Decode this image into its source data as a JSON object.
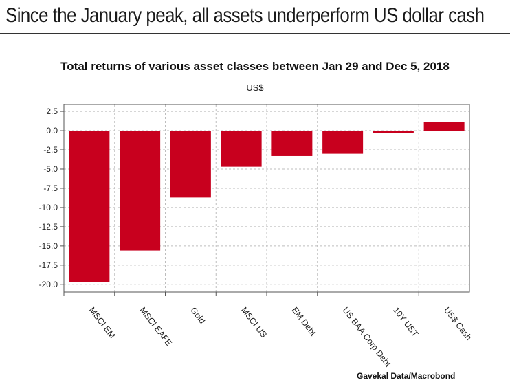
{
  "headline": "Since the January peak, all assets underperform US dollar cash",
  "source": "Gavekal Data/Macrobond",
  "colors": {
    "bar": "#c8001e",
    "grid": "#bdbdbd",
    "axis": "#555555"
  },
  "chart_data": {
    "type": "bar",
    "title": "Total returns of various asset classes between Jan 29 and Dec 5, 2018",
    "units": "US$",
    "xlabel": "",
    "ylabel": "",
    "categories": [
      "MSCI EM",
      "MSCI EAFE",
      "Gold",
      "MSCI US",
      "EM Debt",
      "US BAA Corp Debt",
      "10Y UST",
      "US$ Cash"
    ],
    "values": [
      -19.7,
      -15.6,
      -8.7,
      -4.7,
      -3.3,
      -3.0,
      -0.3,
      1.1
    ],
    "ylim": [
      -21.0,
      3.4
    ],
    "yticks": [
      2.5,
      0.0,
      -2.5,
      -5.0,
      -7.5,
      -10.0,
      -12.5,
      -15.0,
      -17.5,
      -20.0
    ],
    "ytick_labels": [
      "2.5",
      "0.0",
      "-2.5",
      "-5.0",
      "-7.5",
      "-10.0",
      "-12.5",
      "-15.0",
      "-17.5",
      "-20.0"
    ],
    "grid": true,
    "legend": "none"
  }
}
